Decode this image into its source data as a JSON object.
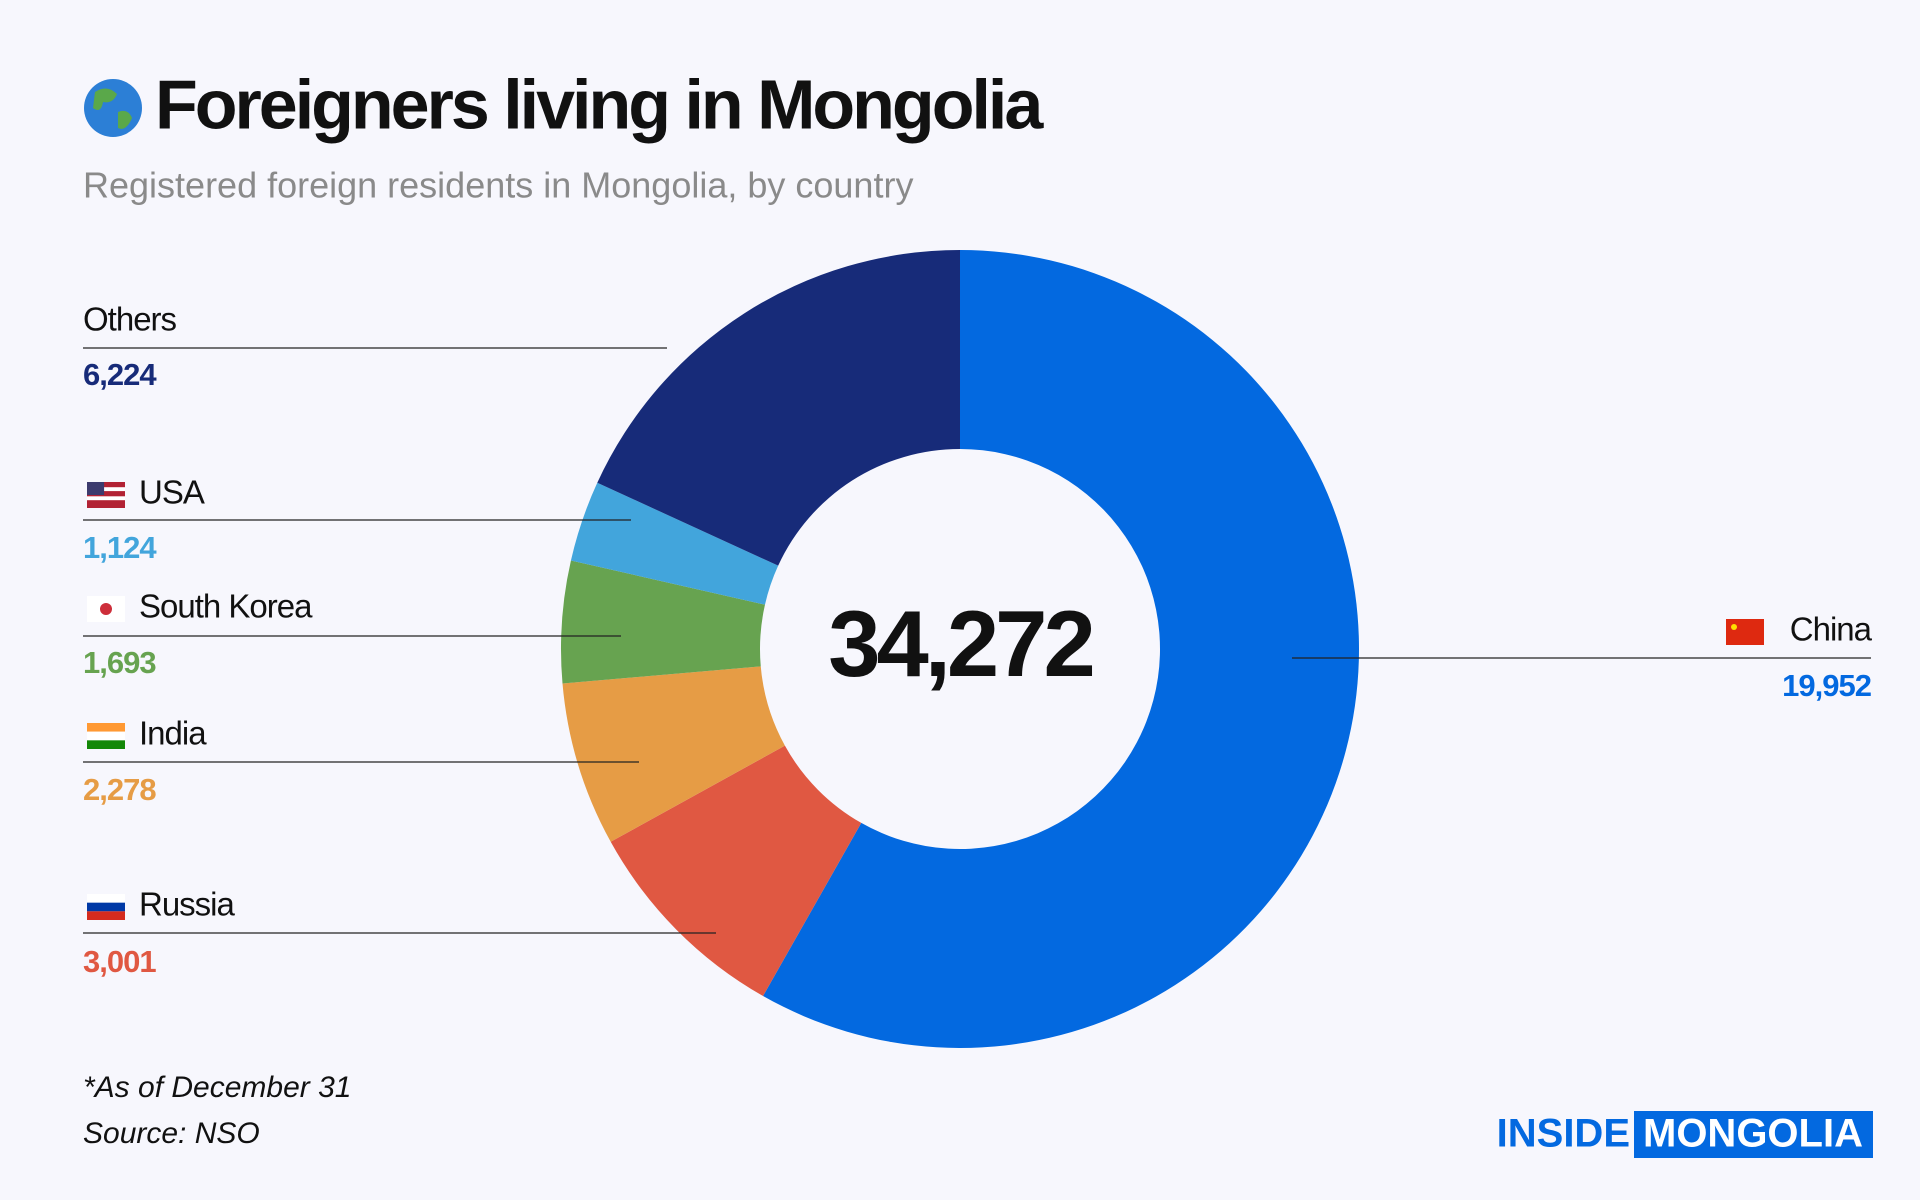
{
  "chart_data": {
    "type": "donut",
    "title": "Foreigners living in Mongolia",
    "subtitle": "Registered foreign residents in Mongolia, by country",
    "categories": [
      "China",
      "Russia",
      "India",
      "South Korea",
      "USA",
      "Others"
    ],
    "values": [
      19952,
      3001,
      2278,
      1693,
      1124,
      6224
    ],
    "value_labels": [
      "19,952",
      "3,001",
      "2,278",
      "1,693",
      "1,124",
      "6,224"
    ],
    "colors": [
      "#0369e0",
      "#e05842",
      "#e69c45",
      "#67a350",
      "#42a5dc",
      "#172b79"
    ],
    "center_label": "34,272",
    "notes": [
      "*As of December 31",
      "Source: NSO"
    ]
  },
  "brand": {
    "left": "INSIDE",
    "right": "MONGOLIA"
  }
}
